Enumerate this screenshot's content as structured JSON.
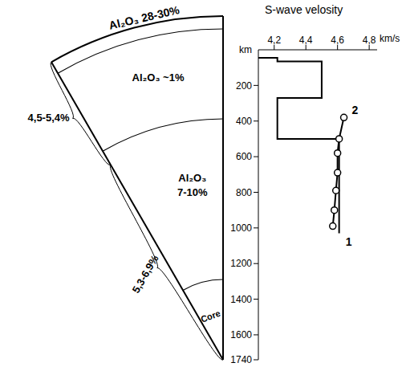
{
  "chart_data": {
    "type": "line",
    "title": "S-wave velosity",
    "x_label": "km/s",
    "y_label": "km",
    "xlim": [
      4.1,
      4.85
    ],
    "xticks": [
      {
        "value": 4.2,
        "label": "4,2"
      },
      {
        "value": 4.4,
        "label": "4,4"
      },
      {
        "value": 4.6,
        "label": "4,6"
      },
      {
        "value": 4.8,
        "label": "4,8"
      }
    ],
    "ylim": [
      0,
      1740
    ],
    "yticks": [
      200,
      400,
      600,
      800,
      1000,
      1200,
      1400,
      1600,
      1740
    ],
    "grid": false,
    "series": [
      {
        "name": "1",
        "color": "#000000",
        "marker": "none",
        "line_style": "solid",
        "x": [
          4.1,
          4.22,
          4.22,
          4.5,
          4.5,
          4.22,
          4.22,
          4.61,
          4.61
        ],
        "values": [
          45,
          45,
          65,
          65,
          270,
          270,
          500,
          500,
          1030
        ]
      },
      {
        "name": "2",
        "color": "#000000",
        "marker": "o",
        "line_style": "solid",
        "x": [
          4.64,
          4.61,
          4.6,
          4.6,
          4.59,
          4.58,
          4.57
        ],
        "values": [
          380,
          500,
          580,
          690,
          790,
          900,
          990
        ]
      }
    ]
  },
  "diagram": {
    "layers": [
      {
        "label": "Al₂O₃ 28-30%"
      },
      {
        "label": "Al₂O₃ ~1%"
      },
      {
        "label": "Al₂O₃ 7-10%"
      },
      {
        "label": "Core"
      }
    ],
    "brackets": [
      {
        "label": "4,5-5,4%"
      },
      {
        "label": "5,3-6,9%"
      }
    ]
  }
}
